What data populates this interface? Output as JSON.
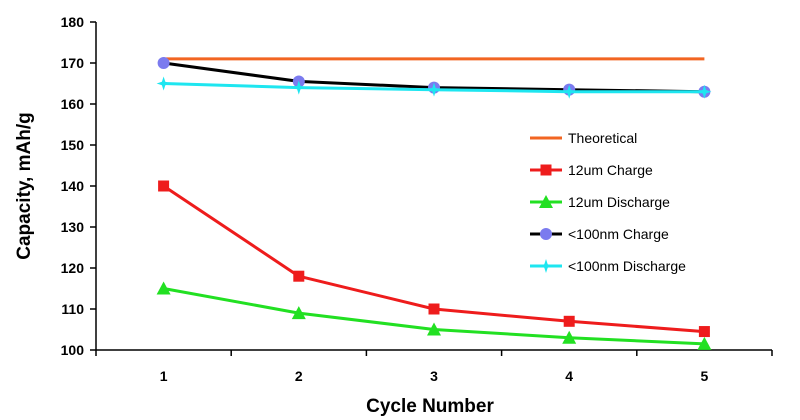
{
  "chart_data": {
    "type": "line",
    "title": "",
    "xlabel": "Cycle Number",
    "ylabel": "Capacity, mAh/g",
    "x": [
      1,
      2,
      3,
      4,
      5
    ],
    "x_tick_labels": [
      "1",
      "2",
      "3",
      "4",
      "5"
    ],
    "y_tick_labels": [
      "100",
      "110",
      "120",
      "130",
      "140",
      "150",
      "160",
      "170",
      "180"
    ],
    "ylim": [
      100,
      180
    ],
    "grid": false,
    "legend_position": "right",
    "series": [
      {
        "name": "Theoretical",
        "marker": "none",
        "color": "#f26522",
        "values": [
          171,
          171,
          171,
          171,
          171
        ]
      },
      {
        "name": "12um Charge",
        "marker": "square",
        "color": "#ee1c1c",
        "values": [
          140,
          118,
          110,
          107,
          104.5
        ]
      },
      {
        "name": "12um Discharge",
        "marker": "triangle",
        "color": "#22e022",
        "values": [
          115,
          109,
          105,
          103,
          101.5
        ]
      },
      {
        "name": "<100nm Charge",
        "marker": "circle",
        "color": "#000000",
        "marker_color": "#7b7bef",
        "values": [
          170,
          165.5,
          164,
          163.5,
          163
        ]
      },
      {
        "name": "<100nm Discharge",
        "marker": "star",
        "color": "#1ee6f0",
        "values": [
          165,
          164,
          163.5,
          163,
          163
        ]
      }
    ]
  }
}
